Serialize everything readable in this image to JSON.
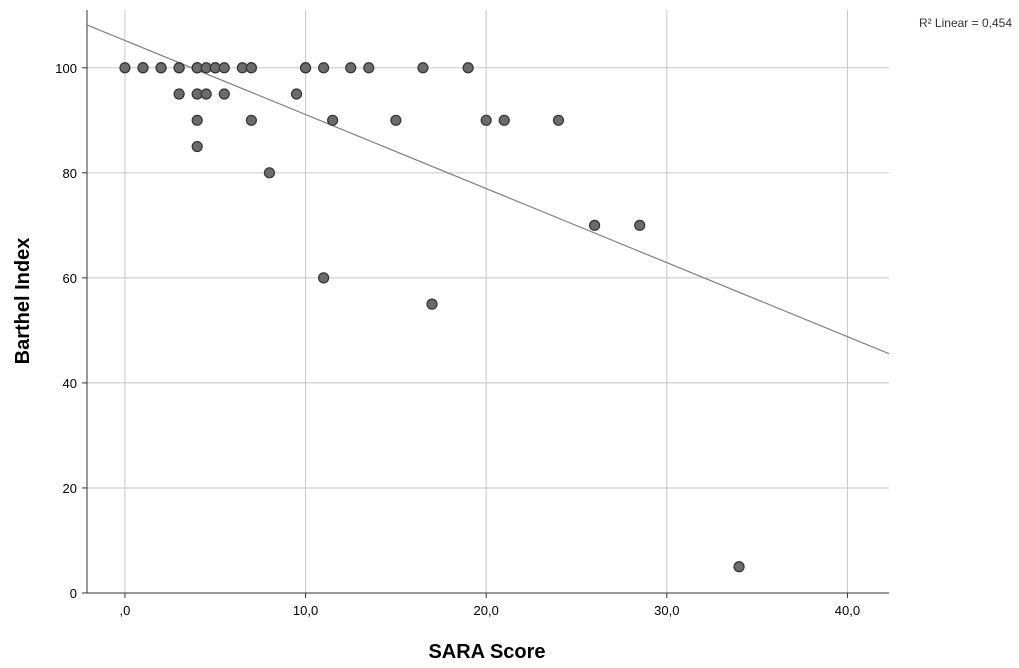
{
  "chart_data": {
    "type": "scatter",
    "xlabel": "SARA Score",
    "ylabel": "Barthel Index",
    "xlim": [
      -2.1,
      42.3
    ],
    "ylim": [
      0,
      111
    ],
    "x_ticks": [
      0,
      10,
      20,
      30,
      40
    ],
    "x_tick_labels": [
      ",0",
      "10,0",
      "20,0",
      "30,0",
      "40,0"
    ],
    "y_ticks": [
      0,
      20,
      40,
      60,
      80,
      100
    ],
    "y_tick_labels": [
      "0",
      "20",
      "40",
      "60",
      "80",
      "100"
    ],
    "grid": true,
    "fit_line": {
      "label": "R² Linear = 0,454",
      "intercept": 105.2,
      "slope": -1.41
    },
    "points": [
      [
        0,
        100
      ],
      [
        1,
        100
      ],
      [
        1,
        100
      ],
      [
        2,
        100
      ],
      [
        2,
        100
      ],
      [
        3,
        100
      ],
      [
        3,
        100
      ],
      [
        4,
        100
      ],
      [
        4,
        100
      ],
      [
        4.5,
        100
      ],
      [
        5,
        100
      ],
      [
        5,
        100
      ],
      [
        5.5,
        100
      ],
      [
        6.5,
        100
      ],
      [
        7,
        100
      ],
      [
        7,
        100
      ],
      [
        10,
        100
      ],
      [
        10,
        100
      ],
      [
        11,
        100
      ],
      [
        12.5,
        100
      ],
      [
        13.5,
        100
      ],
      [
        16.5,
        100
      ],
      [
        19,
        100
      ],
      [
        3,
        95
      ],
      [
        4,
        95
      ],
      [
        4.5,
        95
      ],
      [
        5.5,
        95
      ],
      [
        9.5,
        95
      ],
      [
        4,
        90
      ],
      [
        7,
        90
      ],
      [
        11.5,
        90
      ],
      [
        15,
        90
      ],
      [
        20,
        90
      ],
      [
        21,
        90
      ],
      [
        24,
        90
      ],
      [
        4,
        85
      ],
      [
        8,
        80
      ],
      [
        26,
        70
      ],
      [
        28.5,
        70
      ],
      [
        11,
        60
      ],
      [
        17,
        55
      ],
      [
        34,
        5
      ]
    ],
    "colors": {
      "point_fill": "#6b6b6b",
      "point_stroke": "#333333",
      "grid": "#c8c8c8",
      "axis": "#333333",
      "fit_line": "#808080"
    }
  }
}
